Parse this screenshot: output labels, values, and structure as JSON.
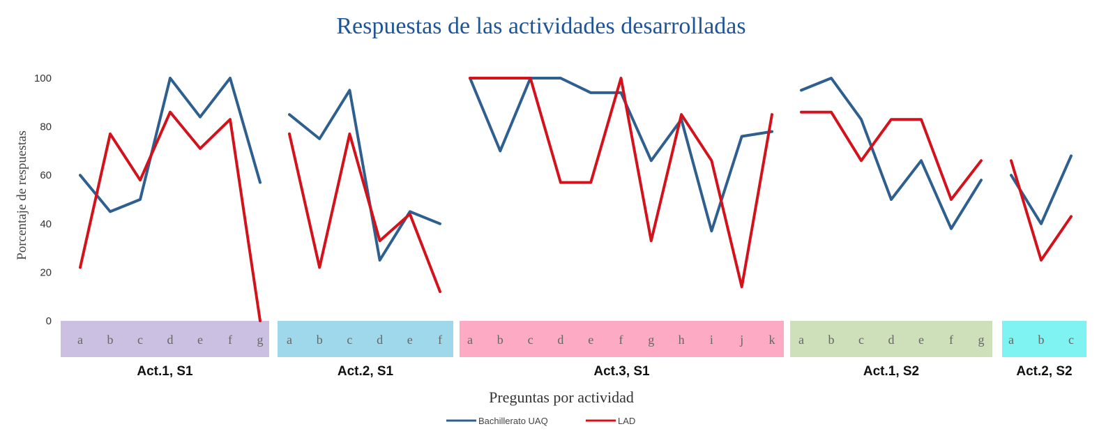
{
  "chart_data": {
    "type": "line",
    "title": "Respuestas de las actividades desarrolladas",
    "xlabel": "Preguntas  por actividad",
    "ylabel": "Porcentaje  de respuestas",
    "ylim": [
      0,
      100
    ],
    "yticks": [
      "0",
      "20",
      "40",
      "60",
      "80",
      "100"
    ],
    "grid": false,
    "legend_position": "bottom",
    "groups": [
      {
        "label": "Act.1, S1",
        "color": "#ccc0e2",
        "categories": [
          "a",
          "b",
          "c",
          "d",
          "e",
          "f",
          "g"
        ]
      },
      {
        "label": "Act.2, S1",
        "color": "#9ed8ea",
        "categories": [
          "a",
          "b",
          "c",
          "d",
          "e",
          "f"
        ]
      },
      {
        "label": "Act.3, S1",
        "color": "#fdaac5",
        "categories": [
          "a",
          "b",
          "c",
          "d",
          "e",
          "f",
          "g",
          "h",
          "i",
          "j",
          "k"
        ]
      },
      {
        "label": "Act.1, S2",
        "color": "#cde0b9",
        "categories": [
          "a",
          "b",
          "c",
          "d",
          "e",
          "f",
          "g"
        ]
      },
      {
        "label": "Act.2, S2",
        "color": "#7ff2f2",
        "categories": [
          "a",
          "b",
          "c"
        ]
      }
    ],
    "series": [
      {
        "name": "Bachillerato UAQ",
        "color": "#2e5f8e",
        "values": [
          [
            60,
            45,
            50,
            100,
            84,
            100,
            57
          ],
          [
            85,
            75,
            95,
            25,
            45,
            40
          ],
          [
            100,
            70,
            100,
            100,
            94,
            94,
            66,
            83,
            37,
            76,
            78
          ],
          [
            95,
            100,
            83,
            50,
            66,
            38,
            58
          ],
          [
            60,
            40,
            68
          ]
        ]
      },
      {
        "name": "LAD",
        "color": "#d4121b",
        "values": [
          [
            22,
            77,
            58,
            86,
            71,
            83,
            0
          ],
          [
            77,
            22,
            77,
            33,
            44,
            12
          ],
          [
            100,
            100,
            100,
            57,
            57,
            100,
            33,
            85,
            66,
            14,
            85
          ],
          [
            86,
            86,
            66,
            83,
            83,
            50,
            66
          ],
          [
            66,
            25,
            43
          ]
        ]
      }
    ]
  }
}
